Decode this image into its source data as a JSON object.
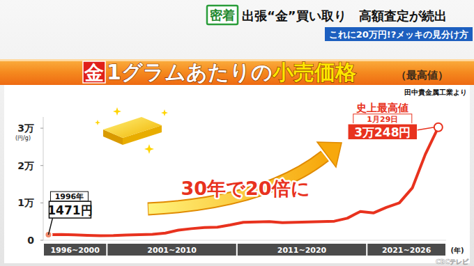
{
  "header": {
    "badge": "密着",
    "headline": "出張“金”買い取り　高額査定が続出",
    "subheadline": "これに20万円!?メッキの見分け方",
    "watermark": "CBCテレビ"
  },
  "chart_data": {
    "type": "line",
    "title": "金1グラムあたりの小売価格",
    "subtitle": "（最高値）",
    "source": "田中貴金属工業より",
    "y_label": "(円/g)",
    "x_label": "(年)",
    "x": [
      1996,
      1997,
      1998,
      1999,
      2000,
      2001,
      2002,
      2003,
      2004,
      2005,
      2006,
      2007,
      2008,
      2009,
      2010,
      2011,
      2012,
      2013,
      2014,
      2015,
      2016,
      2017,
      2018,
      2019,
      2020,
      2021,
      2022,
      2023,
      2024,
      2025,
      2026
    ],
    "values": [
      1471,
      1560,
      1450,
      1300,
      1200,
      1250,
      1400,
      1500,
      1600,
      1900,
      2700,
      3100,
      3400,
      3500,
      4100,
      4800,
      4900,
      5000,
      4700,
      4800,
      4900,
      5000,
      5100,
      5900,
      7700,
      7300,
      8800,
      10000,
      14000,
      23000,
      30248
    ],
    "value_labels": [
      "1471円",
      null,
      null,
      null,
      null,
      null,
      null,
      null,
      null,
      null,
      null,
      null,
      null,
      null,
      null,
      null,
      null,
      null,
      null,
      null,
      null,
      null,
      null,
      null,
      null,
      null,
      null,
      null,
      null,
      null,
      "3万248円"
    ],
    "color": "#e8321e",
    "xlim": [
      1995.6,
      2026.6
    ],
    "ylim": [
      0,
      33000
    ],
    "yticks": [
      0,
      {
        "value": 10000,
        "label": "1万"
      },
      {
        "value": 20000,
        "label": "2万"
      },
      {
        "value": 30000,
        "label": "3万"
      }
    ],
    "x_groups": [
      {
        "label": "1996~2000",
        "from": 1995.6,
        "to": 2000.5
      },
      {
        "label": "2001~2010",
        "from": 2000.5,
        "to": 2010.5
      },
      {
        "label": "2011~2020",
        "from": 2010.5,
        "to": 2020.5
      },
      {
        "label": "2021~2026",
        "from": 2020.5,
        "to": 2026.6
      }
    ],
    "point_callouts": [
      {
        "point": 0,
        "date": "1996年"
      },
      {
        "point": 30,
        "heading": "史上最高値",
        "date": "1月29日"
      }
    ],
    "annotation": "30年で20倍に",
    "grid": false,
    "tick_labels": "y"
  }
}
